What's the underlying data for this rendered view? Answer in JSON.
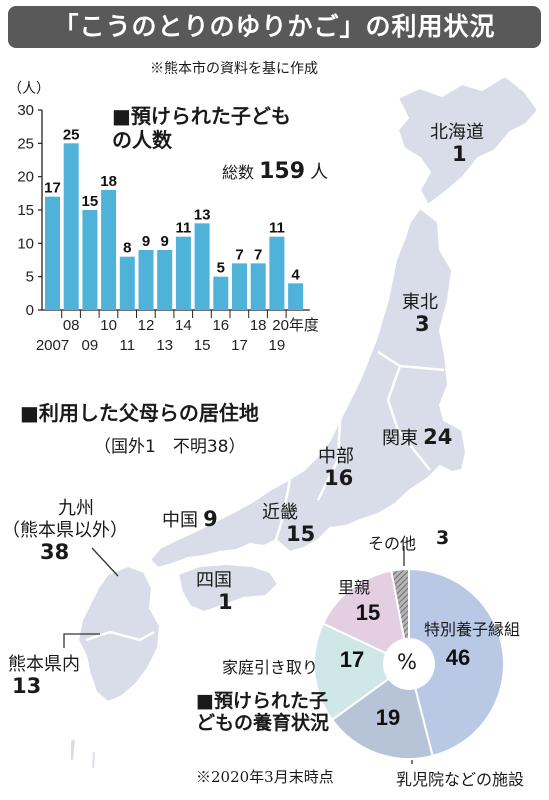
{
  "title": "「こうのとりのゆりかご」の利用状況",
  "source": "※熊本市の資料を基に作成",
  "chart_data": [
    {
      "type": "bar",
      "title": "■預けられた子どもの人数",
      "ylabel": "（人）",
      "ylim": [
        0,
        30
      ],
      "yticks": [
        0,
        5,
        10,
        15,
        20,
        25,
        30
      ],
      "categories": [
        "2007",
        "08",
        "09",
        "10",
        "11",
        "12",
        "13",
        "14",
        "15",
        "16",
        "17",
        "18",
        "19",
        "20年度"
      ],
      "tick_labels_top": [
        "08",
        "10",
        "12",
        "14",
        "16",
        "18",
        "20年度"
      ],
      "tick_labels_bottom": [
        "2007",
        "09",
        "11",
        "13",
        "15",
        "17",
        "19"
      ],
      "values": [
        17,
        25,
        15,
        18,
        8,
        9,
        9,
        11,
        13,
        5,
        7,
        7,
        11,
        4
      ],
      "bar_color": "#4fb3d9",
      "total_label": "総数",
      "total_value": "159",
      "total_unit": "人"
    },
    {
      "type": "pie",
      "title": "■預けられた子どもの養育状況",
      "center_label": "%",
      "note": "※2020年3月末時点",
      "slices": [
        {
          "label": "特別養子縁組",
          "value": 46,
          "color": "#b9c8e4"
        },
        {
          "label": "乳児院などの施設",
          "value": 19,
          "color": "#b7c3d6"
        },
        {
          "label": "家庭引き取り",
          "value": 17,
          "color": "#cfe7e7"
        },
        {
          "label": "里親",
          "value": 15,
          "color": "#e4cfe2"
        },
        {
          "label": "その他",
          "value": 3,
          "color": "#9a9a9a"
        }
      ]
    }
  ],
  "residence": {
    "title": "■利用した父母らの居住地",
    "sub": "（国外1　不明38）",
    "regions": [
      {
        "name": "北海道",
        "value": "1"
      },
      {
        "name": "東北",
        "value": "3"
      },
      {
        "name": "関東",
        "value": "24"
      },
      {
        "name": "中部",
        "value": "16"
      },
      {
        "name": "近畿",
        "value": "15"
      },
      {
        "name": "中国",
        "value": "9"
      },
      {
        "name": "四国",
        "value": "1"
      },
      {
        "name": "九州",
        "sub": "（熊本県以外）",
        "value": "38"
      },
      {
        "name": "熊本県内",
        "value": "13"
      }
    ]
  },
  "colors": {
    "map_fill": "#d9dde9",
    "map_stroke": "#ffffff",
    "title_bg": "#595959",
    "bar": "#4fb3d9"
  }
}
